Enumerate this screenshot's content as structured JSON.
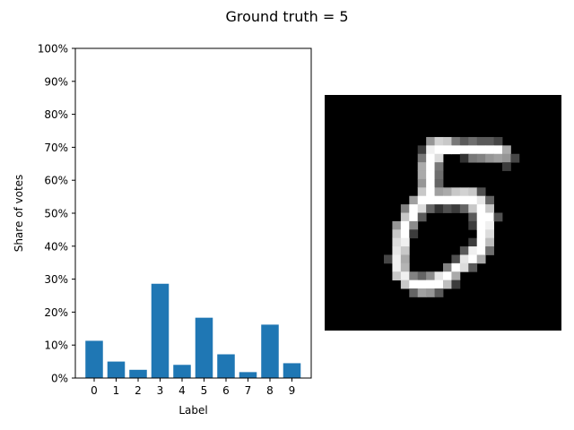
{
  "figure": {
    "suptitle": "Ground truth = 5"
  },
  "chart_data": {
    "type": "bar",
    "title": "",
    "xlabel": "Label",
    "ylabel": "Share of votes",
    "categories": [
      "0",
      "1",
      "2",
      "3",
      "4",
      "5",
      "6",
      "7",
      "8",
      "9"
    ],
    "values": [
      0.113,
      0.05,
      0.025,
      0.286,
      0.04,
      0.183,
      0.072,
      0.018,
      0.162,
      0.045
    ],
    "ylim": [
      0,
      1
    ],
    "y_ticks": [
      0,
      0.1,
      0.2,
      0.3,
      0.4,
      0.5,
      0.6,
      0.7,
      0.8,
      0.9,
      1.0
    ],
    "y_tick_labels": [
      "0%",
      "10%",
      "20%",
      "30%",
      "40%",
      "50%",
      "60%",
      "70%",
      "80%",
      "90%",
      "100%"
    ],
    "bar_color": "#1f77b4",
    "grid": false,
    "legend": "none"
  },
  "digit_image": {
    "subject": "handwritten digit 5",
    "colormap": "gray",
    "background": "#000000",
    "rows": 28,
    "cols": 28
  }
}
